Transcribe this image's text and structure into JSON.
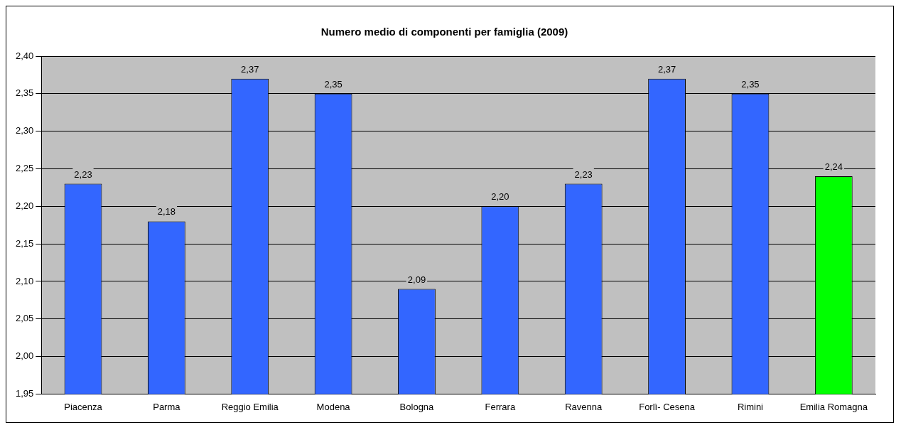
{
  "chart_data": {
    "type": "bar",
    "title": "Numero medio di componenti per famiglia (2009)",
    "categories": [
      "Piacenza",
      "Parma",
      "Reggio Emilia",
      "Modena",
      "Bologna",
      "Ferrara",
      "Ravenna",
      "Forlì- Cesena",
      "Rimini",
      "Emilia Romagna"
    ],
    "values": [
      2.23,
      2.18,
      2.37,
      2.35,
      2.09,
      2.2,
      2.23,
      2.37,
      2.35,
      2.24
    ],
    "colors": [
      "#3366ff",
      "#3366ff",
      "#3366ff",
      "#3366ff",
      "#3366ff",
      "#3366ff",
      "#3366ff",
      "#3366ff",
      "#3366ff",
      "#00ff00"
    ],
    "value_labels": [
      "2,23",
      "2,18",
      "2,37",
      "2,35",
      "2,09",
      "2,20",
      "2,23",
      "2,37",
      "2,35",
      "2,24"
    ],
    "ylim": [
      1.95,
      2.4
    ],
    "yticks": [
      {
        "value": 1.95,
        "label": "1,95"
      },
      {
        "value": 2.0,
        "label": "2,00"
      },
      {
        "value": 2.05,
        "label": "2,05"
      },
      {
        "value": 2.1,
        "label": "2,10"
      },
      {
        "value": 2.15,
        "label": "2,15"
      },
      {
        "value": 2.2,
        "label": "2,20"
      },
      {
        "value": 2.25,
        "label": "2,25"
      },
      {
        "value": 2.3,
        "label": "2,30"
      },
      {
        "value": 2.35,
        "label": "2,35"
      },
      {
        "value": 2.4,
        "label": "2,40"
      }
    ],
    "grid": "y",
    "legend": false
  }
}
